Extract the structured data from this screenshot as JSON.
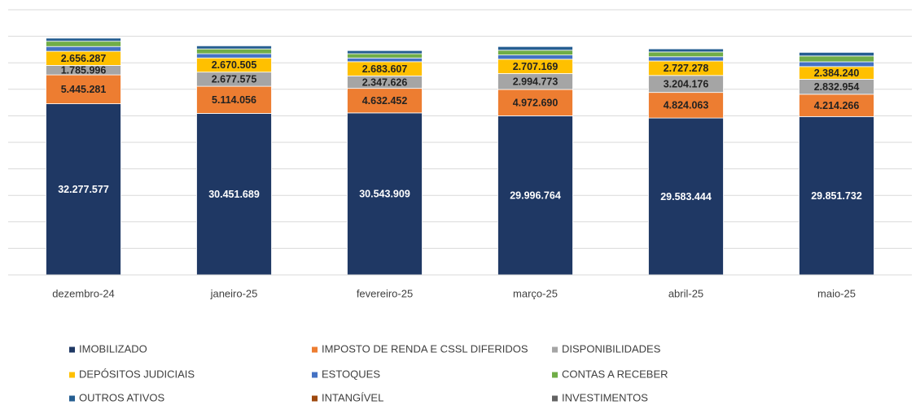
{
  "chart_data": {
    "type": "stacked_bar",
    "categories": [
      "dezembro-24",
      "janeiro-25",
      "fevereiro-25",
      "março-25",
      "abril-25",
      "maio-25"
    ],
    "ylim": [
      0,
      50000000
    ],
    "yticks": [
      0,
      5000000,
      10000000,
      15000000,
      20000000,
      25000000,
      30000000,
      35000000,
      40000000,
      45000000,
      50000000
    ],
    "grid": true,
    "series": [
      {
        "name": "IMOBILIZADO",
        "color": "#1f3864",
        "values": [
          32277577,
          30451689,
          30543909,
          29996764,
          29583444,
          29851732
        ],
        "value_labels": [
          "32.277.577",
          "30.451.689",
          "30.543.909",
          "29.996.764",
          "29.583.444",
          "29.851.732"
        ]
      },
      {
        "name": "IMPOSTO DE RENDA E CSSL DIFERIDOS",
        "color": "#ed7d31",
        "values": [
          5445281,
          5114056,
          4632452,
          4972690,
          4824063,
          4214266
        ],
        "value_labels": [
          "5.445.281",
          "5.114.056",
          "4.632.452",
          "4.972.690",
          "4.824.063",
          "4.214.266"
        ]
      },
      {
        "name": "DISPONIBILIDADES",
        "color": "#a5a5a5",
        "values": [
          1785996,
          2677575,
          2347626,
          2994773,
          3204176,
          2832954
        ],
        "value_labels": [
          "1.785.996",
          "2.677.575",
          "2.347.626",
          "2.994.773",
          "3.204.176",
          "2.832.954"
        ]
      },
      {
        "name": "DEPÓSITOS JUDICIAIS",
        "color": "#ffc000",
        "values": [
          2656287,
          2670505,
          2683607,
          2707169,
          2727278,
          2384240
        ],
        "value_labels": [
          "2.656.287",
          "2.670.505",
          "2.683.607",
          "2.707.169",
          "2.727.278",
          "2.384.240"
        ]
      },
      {
        "name": "ESTOQUES",
        "color": "#4472c4",
        "values": [
          900000,
          800000,
          700000,
          800000,
          800000,
          900000
        ]
      },
      {
        "name": "CONTAS A RECEBER",
        "color": "#70ad47",
        "values": [
          1000000,
          900000,
          800000,
          900000,
          900000,
          1100000
        ]
      },
      {
        "name": "OUTROS ATIVOS",
        "color": "#255e91",
        "values": [
          600000,
          600000,
          600000,
          700000,
          600000,
          700000
        ]
      },
      {
        "name": "INTANGÍVEL",
        "color": "#9e480e",
        "values": [
          100000,
          100000,
          100000,
          100000,
          100000,
          100000
        ]
      },
      {
        "name": "INVESTIMENTOS",
        "color": "#636363",
        "values": [
          100000,
          100000,
          100000,
          100000,
          100000,
          100000
        ]
      }
    ]
  }
}
